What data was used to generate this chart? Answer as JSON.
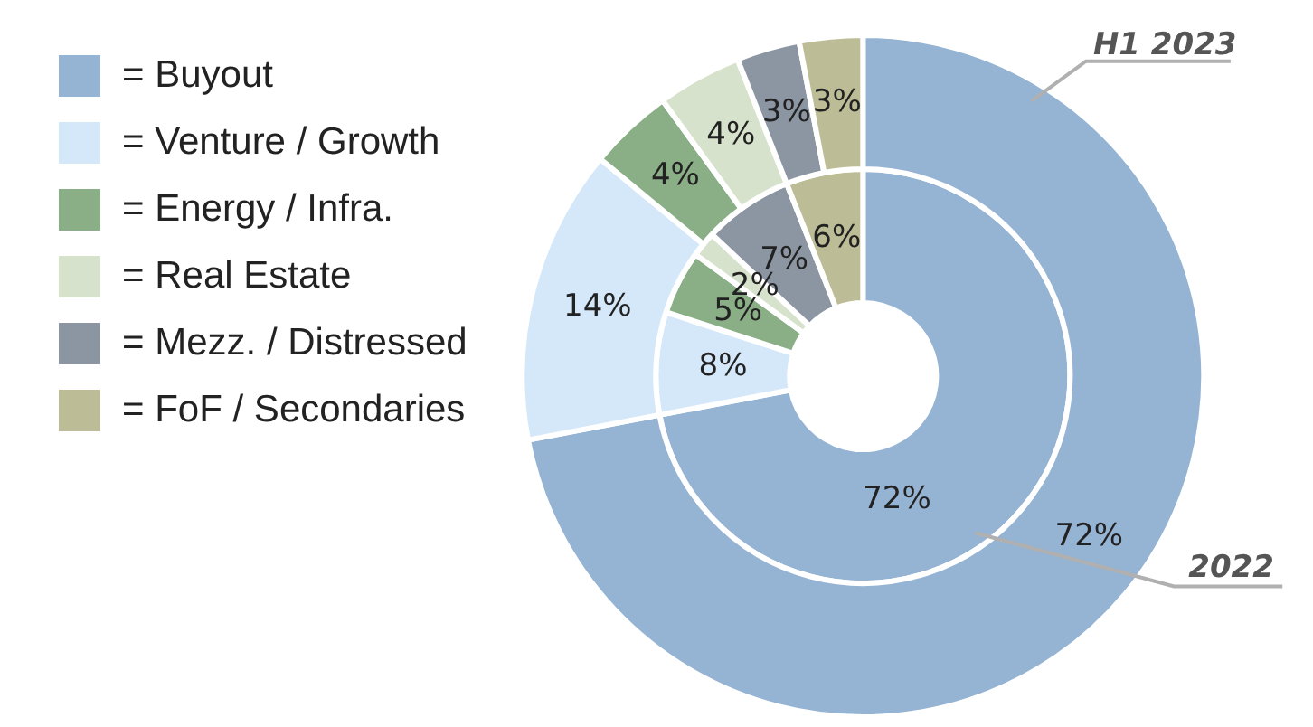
{
  "chart_data": {
    "type": "donut",
    "categories": [
      "= Buyout",
      "= Venture / Growth",
      "= Energy / Infra.",
      "= Real Estate",
      "= Mezz. / Distressed",
      "= FoF / Secondaries"
    ],
    "colors": [
      "#95b3d3",
      "#d5e8fa",
      "#8aae86",
      "#d7e2cd",
      "#8c96a3",
      "#bcbd96"
    ],
    "series": [
      {
        "name": "H1 2023",
        "values": [
          72,
          14,
          4,
          4,
          3,
          3
        ],
        "value_labels": [
          "72%",
          "14%",
          "4%",
          "4%",
          "3%",
          "3%"
        ]
      },
      {
        "name": "2022",
        "values": [
          72,
          8,
          5,
          2,
          7,
          6
        ],
        "value_labels": [
          "72%",
          "8%",
          "5%",
          "2%",
          "7%",
          "6%"
        ]
      }
    ],
    "legend": "left"
  }
}
